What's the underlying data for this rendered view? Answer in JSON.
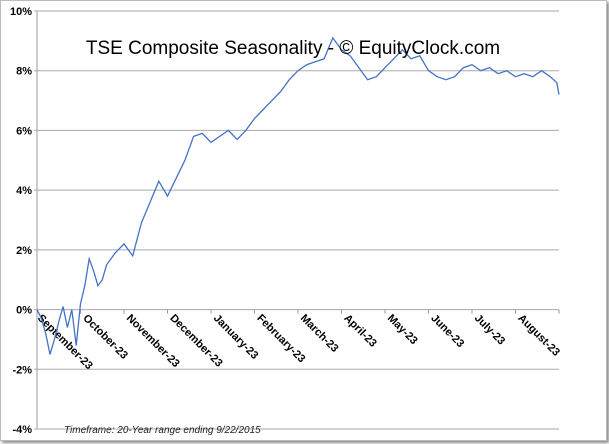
{
  "chart_data": {
    "type": "line",
    "title": "TSE Composite Seasonality - © EquityClock.com",
    "footnote": "Timeframe: 20-Year range ending 9/22/2015",
    "xlabel": "",
    "ylabel": "",
    "ylim": [
      -4,
      10
    ],
    "yticks": [
      -4,
      -2,
      0,
      2,
      4,
      6,
      8,
      10
    ],
    "ytick_labels": [
      "-4%",
      "-2%",
      "0%",
      "2%",
      "4%",
      "6%",
      "8%",
      "10%"
    ],
    "grid": true,
    "categories": [
      "September-23",
      "October-23",
      "November-23",
      "December-23",
      "January-23",
      "February-23",
      "March-23",
      "April-23",
      "May-23",
      "June-23",
      "July-23",
      "August-23"
    ],
    "series": [
      {
        "name": "TSE Composite",
        "color": "#4472C4",
        "x": [
          0,
          0.1,
          0.2,
          0.3,
          0.4,
          0.5,
          0.6,
          0.7,
          0.8,
          0.9,
          1.0,
          1.1,
          1.2,
          1.3,
          1.4,
          1.5,
          1.6,
          1.8,
          2.0,
          2.2,
          2.4,
          2.6,
          2.8,
          3.0,
          3.2,
          3.4,
          3.6,
          3.8,
          4.0,
          4.2,
          4.4,
          4.6,
          4.8,
          5.0,
          5.2,
          5.4,
          5.6,
          5.8,
          6.0,
          6.2,
          6.4,
          6.6,
          6.8,
          7.0,
          7.2,
          7.4,
          7.6,
          7.8,
          8.0,
          8.2,
          8.4,
          8.6,
          8.8,
          9.0,
          9.2,
          9.4,
          9.6,
          9.8,
          10.0,
          10.2,
          10.4,
          10.6,
          10.8,
          11.0,
          11.2,
          11.4,
          11.6,
          11.8,
          11.95,
          12.0
        ],
        "values": [
          0,
          -0.3,
          -0.8,
          -1.5,
          -1.0,
          -0.4,
          0.1,
          -0.6,
          0.0,
          -1.2,
          0.2,
          0.8,
          1.7,
          1.3,
          0.8,
          1.0,
          1.5,
          1.9,
          2.2,
          1.8,
          2.9,
          3.6,
          4.3,
          3.8,
          4.4,
          5.0,
          5.8,
          5.9,
          5.6,
          5.8,
          6.0,
          5.7,
          6.0,
          6.4,
          6.7,
          7.0,
          7.3,
          7.7,
          8.0,
          8.2,
          8.3,
          8.4,
          9.1,
          8.7,
          8.5,
          8.1,
          7.7,
          7.8,
          8.1,
          8.4,
          8.7,
          8.4,
          8.5,
          8.0,
          7.8,
          7.7,
          7.8,
          8.1,
          8.2,
          8.0,
          8.1,
          7.9,
          8.0,
          7.8,
          7.9,
          7.8,
          8.0,
          7.8,
          7.6,
          7.2
        ]
      }
    ]
  }
}
